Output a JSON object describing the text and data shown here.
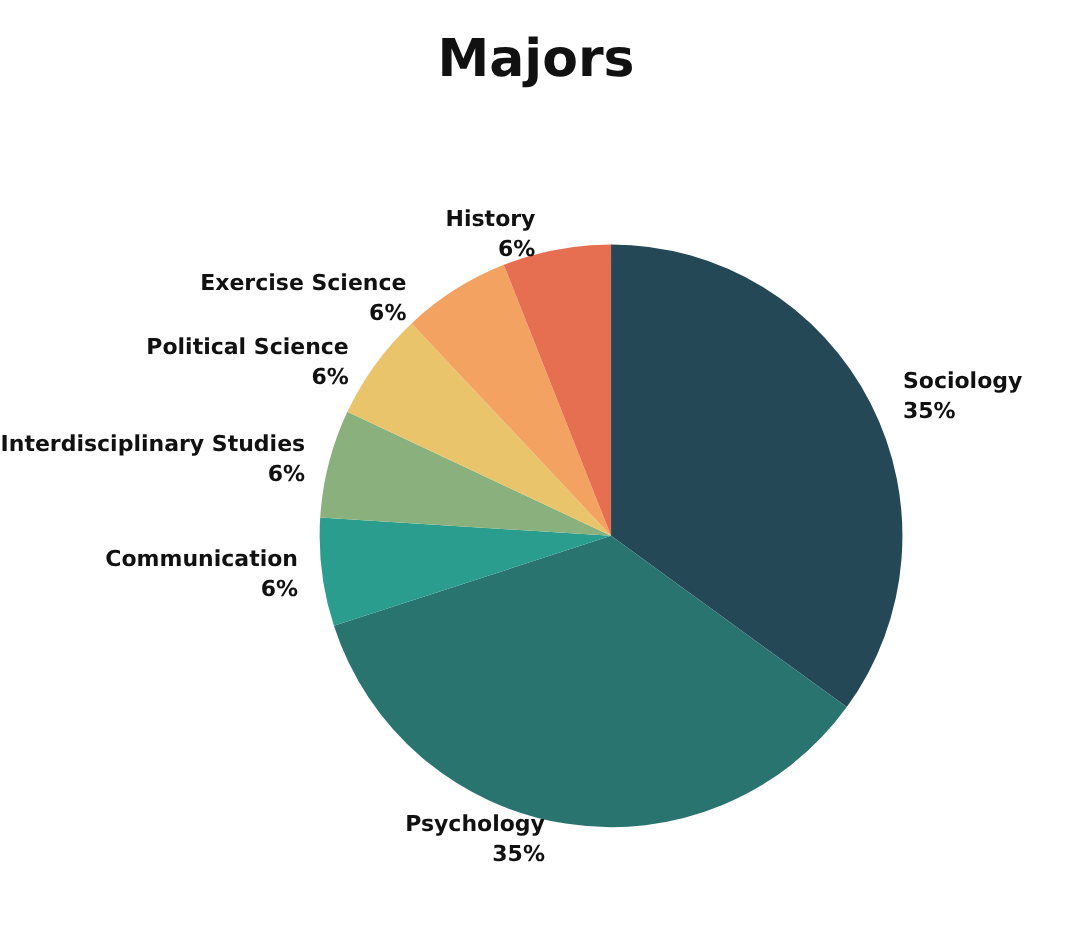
{
  "chart_data": {
    "type": "pie",
    "title": "Majors",
    "categories": [
      "Sociology",
      "Psychology",
      "Communication",
      "Interdisciplinary Studies",
      "Political Science",
      "Exercise Science",
      "History"
    ],
    "values": [
      35,
      35,
      6,
      6,
      6,
      6,
      6
    ],
    "value_labels": [
      "35%",
      "35%",
      "6%",
      "6%",
      "6%",
      "6%",
      "6%"
    ],
    "colors": [
      "#244856",
      "#2a7470",
      "#2a9d8f",
      "#8ab17d",
      "#e9c46a",
      "#f4a261",
      "#e76f51"
    ],
    "legend": false
  }
}
